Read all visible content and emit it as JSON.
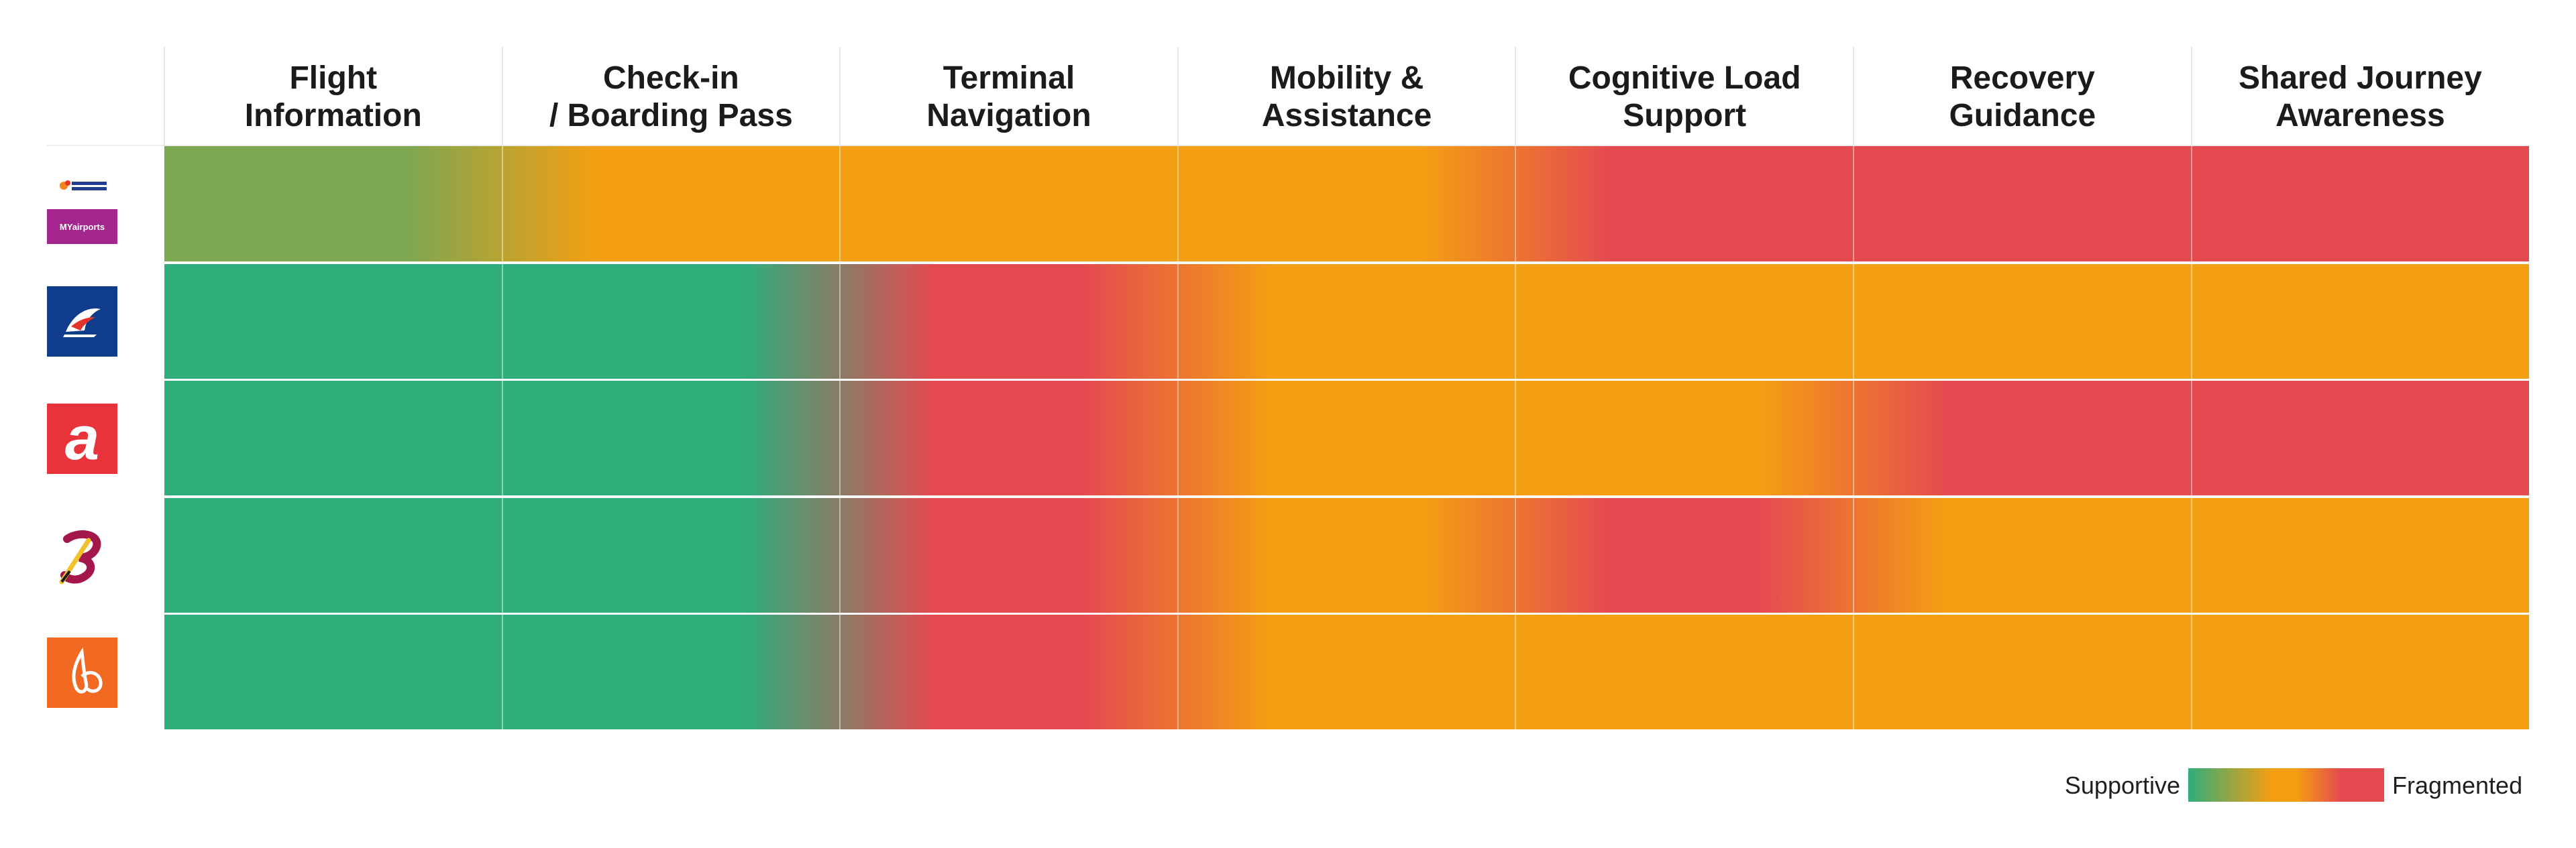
{
  "chart_data": {
    "type": "heatmap",
    "title": "",
    "columns": [
      "Flight\nInformation",
      "Check-in\n/ Boarding Pass",
      "Terminal\nNavigation",
      "Mobility &\nAssistance",
      "Cognitive Load\nSupport",
      "Recovery\nGuidance",
      "Shared Journey\nAwareness"
    ],
    "rows": [
      {
        "logo": "malaysia-airports-myairports-logo",
        "logo_text_top": "MALAYSIA AIRPORTS",
        "logo_text_bottom": "MYairports",
        "values": [
          0.2,
          0.5,
          0.5,
          0.5,
          1.0,
          1.0,
          1.0
        ]
      },
      {
        "logo": "malaysia-airlines-logo",
        "values": [
          0.0,
          0.0,
          1.0,
          0.5,
          0.5,
          0.5,
          0.5
        ]
      },
      {
        "logo": "airasia-logo",
        "logo_text": "a",
        "values": [
          0.0,
          0.0,
          1.0,
          0.5,
          0.5,
          1.0,
          1.0
        ]
      },
      {
        "logo": "batik-air-logo",
        "values": [
          0.0,
          0.0,
          1.0,
          0.5,
          1.0,
          0.5,
          0.5
        ]
      },
      {
        "logo": "firefly-logo",
        "values": [
          0.0,
          0.0,
          1.0,
          0.5,
          0.5,
          0.5,
          0.5
        ]
      }
    ],
    "scale": {
      "min_label": "Supportive",
      "max_label": "Fragmented",
      "colors": [
        "#2fad7b",
        "#f49f12",
        "#e54a50"
      ]
    },
    "legend_position": "bottom-right",
    "grid": false
  }
}
